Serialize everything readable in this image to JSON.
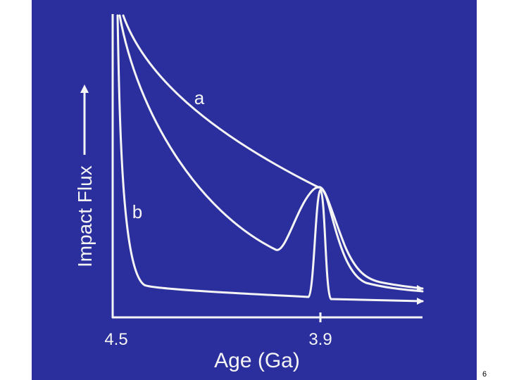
{
  "y_axis_label": "Impact Flux",
  "x_axis_label": "Age (Ga)",
  "x_ticks": [
    "4.5",
    "3.9"
  ],
  "curve_labels": [
    "a",
    "b"
  ],
  "page_number": "6"
}
